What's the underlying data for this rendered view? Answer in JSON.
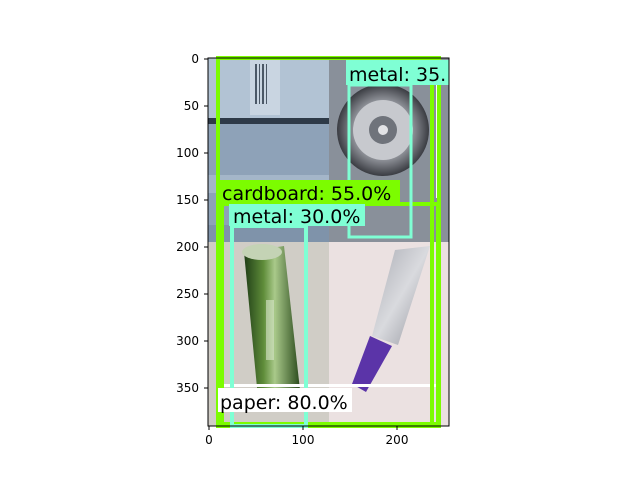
{
  "axes": {
    "x_ticks": [
      "0",
      "100",
      "200"
    ],
    "y_ticks": [
      "0",
      "50",
      "100",
      "150",
      "200",
      "250",
      "300",
      "350"
    ]
  },
  "detections": [
    {
      "label": "metal: 35.",
      "color": "#7fffd4",
      "label_bg": "#7fffd4"
    },
    {
      "label": "cardboard: 55.0%",
      "color": "#7cfc00",
      "label_bg": "#7cfc00"
    },
    {
      "label": "metal: 30.0%",
      "color": "#7fffd4",
      "label_bg": "#7fffd4"
    },
    {
      "label": "paper: 80.0%",
      "color": "#ffffff",
      "label_bg": "#ffffff"
    }
  ],
  "scene": {
    "top_left": "cardboard box photo",
    "top_right": "metal can lid photo",
    "bottom_left": "green bottle photo",
    "bottom_right": "glass bottle photo"
  },
  "colors": {
    "green_box": "#7cfc00",
    "aqua_box": "#7fffd4",
    "white_box": "#ffffff"
  }
}
